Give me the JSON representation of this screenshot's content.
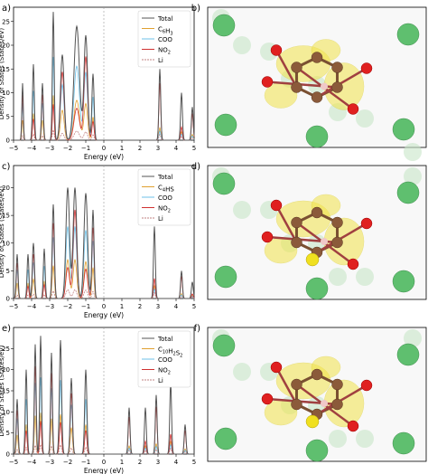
{
  "panels": [
    {
      "letter": "a)",
      "legend": [
        "Total",
        "C6H3",
        "COO",
        "NO2",
        "Li"
      ],
      "legend_sub": [
        [
          "",
          ""
        ],
        [
          "C",
          "6",
          "H",
          "3"
        ],
        [
          "",
          ""
        ],
        [
          "NO",
          "2"
        ],
        [
          "",
          ""
        ]
      ]
    },
    {
      "letter": "c)",
      "legend": [
        "Total",
        "C4HS",
        "COO",
        "NO2",
        "Li"
      ],
      "legend_sub": [
        [
          "",
          ""
        ],
        [
          "C",
          "4",
          "HS",
          ""
        ],
        [
          "",
          ""
        ],
        [
          "NO",
          "2"
        ],
        [
          "",
          ""
        ]
      ]
    },
    {
      "letter": "e)",
      "legend": [
        "Total",
        "C10H2S2",
        "COO",
        "NO2",
        "Li"
      ],
      "legend_sub": [
        [
          "",
          ""
        ],
        [
          "C",
          "10",
          "H",
          "2",
          "S",
          "2"
        ],
        [
          "",
          ""
        ],
        [
          "NO",
          "2"
        ],
        [
          "",
          ""
        ]
      ]
    }
  ],
  "structure_letters": [
    "b)",
    "d)",
    "f)"
  ],
  "ylabel": "Density of States (States/eV)",
  "xlabel": "Energy (eV)",
  "colors": {
    "Total": "#555555",
    "frag": "#e0a030",
    "COO": "#6cc0e8",
    "NO2": "#d03030",
    "Li": "#c08080"
  },
  "chart_data": [
    {
      "type": "line",
      "xlim": [
        -5,
        5
      ],
      "ylim": [
        0,
        28
      ],
      "x_ticks": [
        "−5",
        "−4",
        "−3",
        "−2",
        "−1",
        "0",
        "1",
        "2",
        "3",
        "4",
        "5"
      ],
      "y_ticks": [
        "0",
        "5",
        "10",
        "15",
        "20",
        "25"
      ],
      "peaks": [
        {
          "x": -4.5,
          "y": 12,
          "w": 0.04
        },
        {
          "x": -3.9,
          "y": 16,
          "w": 0.05
        },
        {
          "x": -3.4,
          "y": 12,
          "w": 0.05
        },
        {
          "x": -2.8,
          "y": 27,
          "w": 0.05
        },
        {
          "x": -2.3,
          "y": 18,
          "w": 0.1
        },
        {
          "x": -1.5,
          "y": 24,
          "w": 0.15
        },
        {
          "x": -1.0,
          "y": 22,
          "w": 0.1
        },
        {
          "x": -0.6,
          "y": 14,
          "w": 0.06
        },
        {
          "x": 3.1,
          "y": 15,
          "w": 0.05
        },
        {
          "x": 4.3,
          "y": 10,
          "w": 0.05
        },
        {
          "x": 4.9,
          "y": 7,
          "w": 0.05
        }
      ],
      "legend_position": "top-right"
    },
    {
      "type": "line",
      "xlim": [
        -5,
        5
      ],
      "ylim": [
        0,
        24
      ],
      "x_ticks": [
        "−5",
        "−4",
        "−3",
        "−2",
        "−1",
        "0",
        "1",
        "2",
        "3",
        "4",
        "5"
      ],
      "y_ticks": [
        "0",
        "5",
        "10",
        "15",
        "20"
      ],
      "peaks": [
        {
          "x": -4.8,
          "y": 8,
          "w": 0.05
        },
        {
          "x": -4.2,
          "y": 8,
          "w": 0.05
        },
        {
          "x": -3.9,
          "y": 10,
          "w": 0.06
        },
        {
          "x": -3.3,
          "y": 9,
          "w": 0.05
        },
        {
          "x": -2.8,
          "y": 17,
          "w": 0.06
        },
        {
          "x": -2.0,
          "y": 20,
          "w": 0.1
        },
        {
          "x": -1.6,
          "y": 20,
          "w": 0.1
        },
        {
          "x": -1.0,
          "y": 19,
          "w": 0.1
        },
        {
          "x": -0.6,
          "y": 16,
          "w": 0.06
        },
        {
          "x": 2.8,
          "y": 13,
          "w": 0.05
        },
        {
          "x": 4.3,
          "y": 5,
          "w": 0.05
        },
        {
          "x": 4.9,
          "y": 3,
          "w": 0.05
        }
      ],
      "legend_position": "top-right"
    },
    {
      "type": "line",
      "xlim": [
        -5,
        5
      ],
      "ylim": [
        0,
        30
      ],
      "x_ticks": [
        "−5",
        "−4",
        "−3",
        "−2",
        "−1",
        "0",
        "1",
        "2",
        "3",
        "4",
        "5"
      ],
      "y_ticks": [
        "0",
        "5",
        "10",
        "15",
        "20",
        "25"
      ],
      "peaks": [
        {
          "x": -4.8,
          "y": 13,
          "w": 0.05
        },
        {
          "x": -4.3,
          "y": 20,
          "w": 0.05
        },
        {
          "x": -3.8,
          "y": 26,
          "w": 0.05
        },
        {
          "x": -3.5,
          "y": 28,
          "w": 0.05
        },
        {
          "x": -2.9,
          "y": 24,
          "w": 0.05
        },
        {
          "x": -2.4,
          "y": 27,
          "w": 0.06
        },
        {
          "x": -1.8,
          "y": 18,
          "w": 0.06
        },
        {
          "x": -1.0,
          "y": 20,
          "w": 0.06
        },
        {
          "x": 1.4,
          "y": 11,
          "w": 0.05
        },
        {
          "x": 2.3,
          "y": 11,
          "w": 0.05
        },
        {
          "x": 2.9,
          "y": 14,
          "w": 0.05
        },
        {
          "x": 3.7,
          "y": 17,
          "w": 0.05
        },
        {
          "x": 4.5,
          "y": 7,
          "w": 0.05
        }
      ],
      "legend_position": "top-right"
    }
  ]
}
